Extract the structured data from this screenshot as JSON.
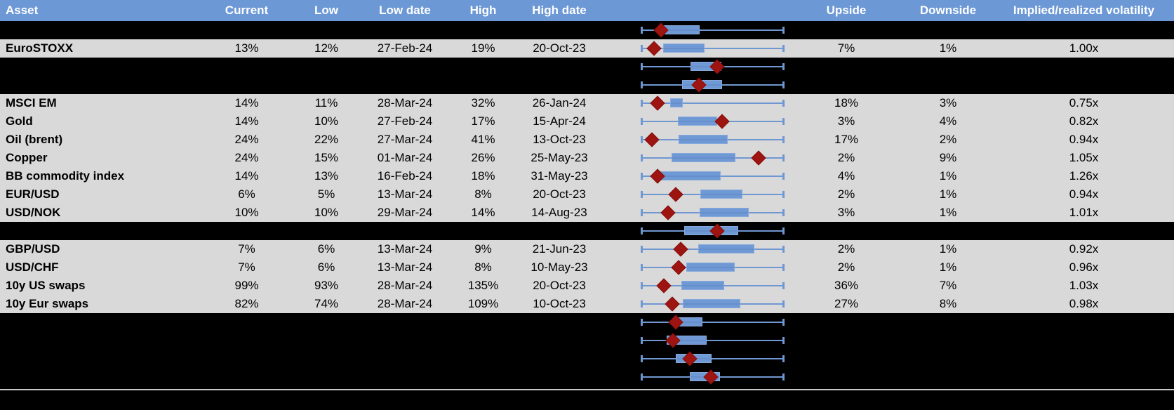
{
  "colors": {
    "header_bg": "#6c98d5",
    "row_bg": "#d9d9d9",
    "spacer_bg": "#000000",
    "box_fill": "#6f99d4",
    "whisker": "#6f97d1",
    "marker": "#9e1410",
    "separator": "#c8c8c8"
  },
  "columns": [
    {
      "label": "Asset"
    },
    {
      "label": "Current"
    },
    {
      "label": "Low"
    },
    {
      "label": "Low date"
    },
    {
      "label": "High"
    },
    {
      "label": "High date"
    },
    {
      "label": ""
    },
    {
      "label": "Upside"
    },
    {
      "label": "Downside"
    },
    {
      "label": "Implied/realized volatility"
    }
  ],
  "rows": [
    {
      "kind": "spacer",
      "plot": {
        "box": [
          0.156,
          0.408
        ],
        "marker": 0.14
      }
    },
    {
      "kind": "data",
      "cells": {
        "asset": "EuroSTOXX",
        "current": "13%",
        "low": "12%",
        "low_date": "27-Feb-24",
        "high": "19%",
        "high_date": "20-Oct-23",
        "upside": "7%",
        "downside": "1%",
        "implied_realized": "1.00x"
      },
      "plot": {
        "box": [
          0.156,
          0.446
        ],
        "marker": 0.094
      }
    },
    {
      "kind": "spacer",
      "plot": {
        "box": [
          0.348,
          0.563
        ],
        "marker": 0.53
      }
    },
    {
      "kind": "spacer",
      "plot": {
        "box": [
          0.287,
          0.567
        ],
        "marker": 0.403
      }
    },
    {
      "kind": "data",
      "cells": {
        "asset": "MSCI EM",
        "current": "14%",
        "low": "11%",
        "low_date": "28-Mar-24",
        "high": "32%",
        "high_date": "26-Jan-24",
        "upside": "18%",
        "downside": "3%",
        "implied_realized": "0.75x"
      },
      "plot": {
        "box": [
          0.205,
          0.291
        ],
        "marker": 0.119
      }
    },
    {
      "kind": "data",
      "cells": {
        "asset": "Gold",
        "current": "14%",
        "low": "10%",
        "low_date": "27-Feb-24",
        "high": "17%",
        "high_date": "15-Apr-24",
        "upside": "3%",
        "downside": "4%",
        "implied_realized": "0.82x"
      },
      "plot": {
        "box": [
          0.259,
          0.53
        ],
        "marker": 0.567
      }
    },
    {
      "kind": "data",
      "cells": {
        "asset": "Oil (brent)",
        "current": "24%",
        "low": "22%",
        "low_date": "27-Mar-24",
        "high": "41%",
        "high_date": "13-Oct-23",
        "upside": "17%",
        "downside": "2%",
        "implied_realized": "0.94x"
      },
      "plot": {
        "box": [
          0.262,
          0.603
        ],
        "marker": 0.08
      }
    },
    {
      "kind": "data",
      "cells": {
        "asset": "Copper",
        "current": "24%",
        "low": "15%",
        "low_date": "01-Mar-24",
        "high": "26%",
        "high_date": "25-May-23",
        "upside": "2%",
        "downside": "9%",
        "implied_realized": "1.05x"
      },
      "plot": {
        "box": [
          0.216,
          0.66
        ],
        "marker": 0.82
      }
    },
    {
      "kind": "data",
      "cells": {
        "asset": "BB commodity index",
        "current": "14%",
        "low": "13%",
        "low_date": "16-Feb-24",
        "high": "18%",
        "high_date": "31-May-23",
        "upside": "4%",
        "downside": "1%",
        "implied_realized": "1.26x"
      },
      "plot": {
        "box": [
          0.128,
          0.555
        ],
        "marker": 0.116
      }
    },
    {
      "kind": "data",
      "cells": {
        "asset": "EUR/USD",
        "current": "6%",
        "low": "5%",
        "low_date": "13-Mar-24",
        "high": "8%",
        "high_date": "20-Oct-23",
        "upside": "2%",
        "downside": "1%",
        "implied_realized": "0.94x"
      },
      "plot": {
        "box": [
          0.413,
          0.709
        ],
        "marker": 0.242
      }
    },
    {
      "kind": "data",
      "cells": {
        "asset": "USD/NOK",
        "current": "10%",
        "low": "10%",
        "low_date": "29-Mar-24",
        "high": "14%",
        "high_date": "14-Aug-23",
        "upside": "3%",
        "downside": "1%",
        "implied_realized": "1.01x"
      },
      "plot": {
        "box": [
          0.408,
          0.753
        ],
        "marker": 0.189
      }
    },
    {
      "kind": "spacer",
      "plot": {
        "box": [
          0.302,
          0.677
        ],
        "marker": 0.53
      }
    },
    {
      "kind": "data",
      "cells": {
        "asset": "GBP/USD",
        "current": "7%",
        "low": "6%",
        "low_date": "13-Mar-24",
        "high": "9%",
        "high_date": "21-Jun-23",
        "upside": "2%",
        "downside": "1%",
        "implied_realized": "0.92x"
      },
      "plot": {
        "box": [
          0.4,
          0.79
        ],
        "marker": 0.278
      }
    },
    {
      "kind": "data",
      "cells": {
        "asset": "USD/CHF",
        "current": "7%",
        "low": "6%",
        "low_date": "13-Mar-24",
        "high": "8%",
        "high_date": "10-May-23",
        "upside": "2%",
        "downside": "1%",
        "implied_realized": "0.96x"
      },
      "plot": {
        "box": [
          0.319,
          0.652
        ],
        "marker": 0.262
      }
    },
    {
      "kind": "data",
      "cells": {
        "asset": "10y US swaps",
        "current": "99%",
        "low": "93%",
        "low_date": "28-Mar-24",
        "high": "135%",
        "high_date": "20-Oct-23",
        "upside": "36%",
        "downside": "7%",
        "implied_realized": "1.03x"
      },
      "plot": {
        "box": [
          0.283,
          0.582
        ],
        "marker": 0.161
      }
    },
    {
      "kind": "data",
      "cells": {
        "asset": "10y Eur swaps",
        "current": "82%",
        "low": "74%",
        "low_date": "28-Mar-24",
        "high": "109%",
        "high_date": "10-Oct-23",
        "upside": "27%",
        "downside": "8%",
        "implied_realized": "0.98x"
      },
      "plot": {
        "box": [
          0.294,
          0.693
        ],
        "marker": 0.221
      }
    },
    {
      "kind": "spacer",
      "plot": {
        "box": [
          0.226,
          0.429
        ],
        "marker": 0.242
      }
    },
    {
      "kind": "spacer",
      "plot": {
        "box": [
          0.18,
          0.46
        ],
        "marker": 0.224
      }
    },
    {
      "kind": "spacer",
      "plot": {
        "box": [
          0.242,
          0.493
        ],
        "marker": 0.343
      }
    },
    {
      "kind": "spacer",
      "plot": {
        "box": [
          0.343,
          0.55
        ],
        "marker": 0.489
      }
    }
  ]
}
